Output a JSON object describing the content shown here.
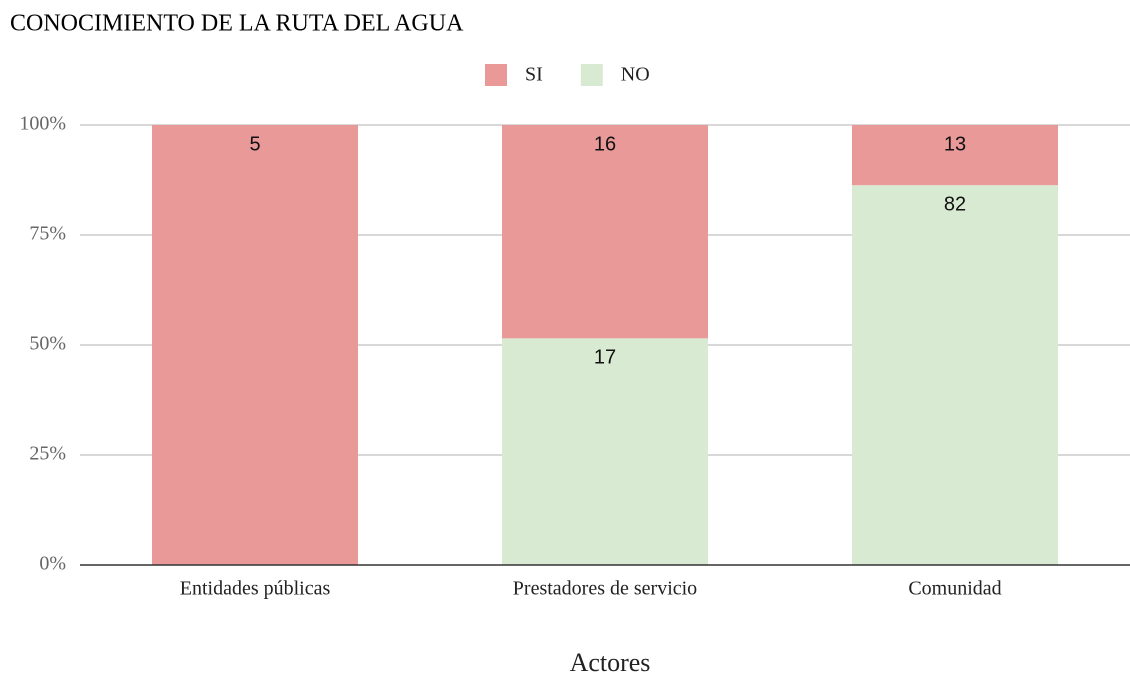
{
  "chart_data": {
    "type": "bar",
    "stacking": "percent",
    "title": "CONOCIMIENTO DE LA RUTA DEL AGUA",
    "x_label": "Actores",
    "categories": [
      "Entidades públicas",
      "Prestadores de servicio",
      "Comunidad"
    ],
    "series": [
      {
        "name": "SI",
        "color": "#ea9999",
        "values": [
          5,
          16,
          13
        ]
      },
      {
        "name": "NO",
        "color": "#d9ead3",
        "values": [
          0,
          17,
          82
        ]
      }
    ],
    "ylim": [
      0,
      100
    ],
    "yticks": [
      {
        "value": 0,
        "label": "0%"
      },
      {
        "value": 25,
        "label": "25%"
      },
      {
        "value": 50,
        "label": "50%"
      },
      {
        "value": 75,
        "label": "75%"
      },
      {
        "value": 100,
        "label": "100%"
      }
    ],
    "grid": true,
    "legend": "top"
  }
}
